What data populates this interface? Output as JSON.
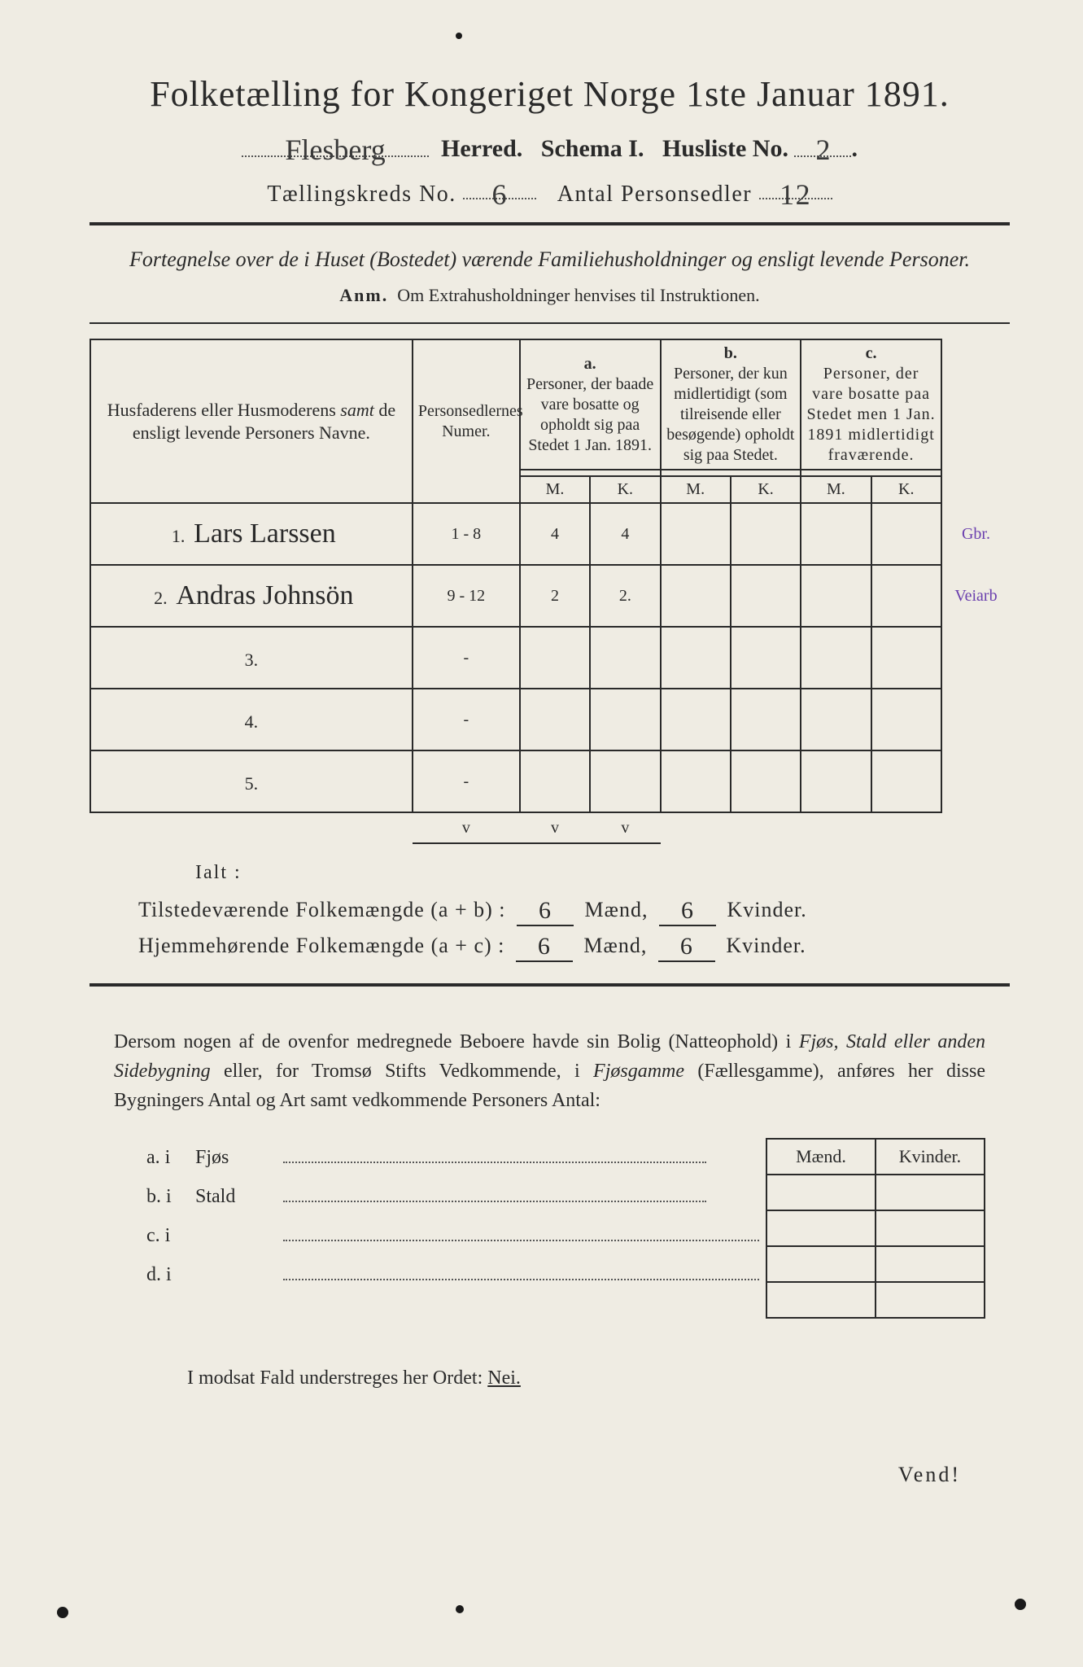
{
  "title": "Folketælling for Kongeriget Norge 1ste Januar 1891.",
  "header": {
    "herred_value": "Flesberg",
    "herred_label": "Herred.",
    "schema_label": "Schema I.",
    "husliste_label": "Husliste No.",
    "husliste_value": "2",
    "kreds_label": "Tællingskreds No.",
    "kreds_value": "6",
    "antal_label": "Antal Personsedler",
    "antal_value": "12"
  },
  "subtitle": "Fortegnelse over de i Huset (Bostedet) værende Familiehusholdninger og ensligt levende Personer.",
  "anm_label": "Anm.",
  "anm_text": "Om Extrahusholdninger henvises til Instruktionen.",
  "table": {
    "head": {
      "names": "Husfaderens eller Husmoderens samt de ensligt levende Personers Navne.",
      "numbers": "Personsedlernes Numer.",
      "a_label": "a.",
      "a_text": "Personer, der baade vare bosatte og opholdt sig paa Stedet 1 Jan. 1891.",
      "b_label": "b.",
      "b_text": "Personer, der kun midlertidigt (som tilreisende eller besøgende) opholdt sig paa Stedet.",
      "c_label": "c.",
      "c_text": "Personer, der vare bosatte paa Stedet men 1 Jan. 1891 midlertidigt fraværende.",
      "m": "M.",
      "k": "K."
    },
    "rows": [
      {
        "n": "1.",
        "name": "Lars Larssen",
        "num": "1 - 8",
        "a_m": "4",
        "a_k": "4",
        "b_m": "",
        "b_k": "",
        "c_m": "",
        "c_k": "",
        "margin": "Gbr."
      },
      {
        "n": "2.",
        "name": "Andras Johnsön",
        "num": "9 - 12",
        "a_m": "2",
        "a_k": "2.",
        "b_m": "",
        "b_k": "",
        "c_m": "",
        "c_k": "",
        "margin": "Veiarb"
      },
      {
        "n": "3.",
        "name": "",
        "num": "-",
        "a_m": "",
        "a_k": "",
        "b_m": "",
        "b_k": "",
        "c_m": "",
        "c_k": "",
        "margin": ""
      },
      {
        "n": "4.",
        "name": "",
        "num": "-",
        "a_m": "",
        "a_k": "",
        "b_m": "",
        "b_k": "",
        "c_m": "",
        "c_k": "",
        "margin": ""
      },
      {
        "n": "5.",
        "name": "",
        "num": "-",
        "a_m": "",
        "a_k": "",
        "b_m": "",
        "b_k": "",
        "c_m": "",
        "c_k": "",
        "margin": ""
      }
    ],
    "checks": {
      "c1": "v",
      "c2": "v",
      "c3": "v"
    }
  },
  "ialt": "Ialt :",
  "totals": {
    "line1_label": "Tilstedeværende Folkemængde (a + b) :",
    "line2_label": "Hjemmehørende Folkemængde (a + c) :",
    "maend": "Mænd,",
    "kvinder": "Kvinder.",
    "l1_m": "6",
    "l1_k": "6",
    "l2_m": "6",
    "l2_k": "6"
  },
  "para": {
    "p1": "Dersom nogen af de ovenfor medregnede Beboere havde sin Bolig (Natteophold) i ",
    "p1_it": "Fjøs, Stald eller anden Sidebygning",
    "p1b": " eller, for Tromsø Stifts Vedkommende, i ",
    "p1_it2": "Fjøsgamme",
    "p1c": " (Fællesgamme), anføres her disse Bygningers Antal og Art samt vedkommende Personers Antal:"
  },
  "mk": {
    "m": "Mænd.",
    "k": "Kvinder."
  },
  "list": {
    "a": "a.  i",
    "a2": "Fjøs",
    "b": "b.  i",
    "b2": "Stald",
    "c": "c.  i",
    "d": "d.  i"
  },
  "nei": {
    "text": "I modsat Fald understreges her Ordet: ",
    "word": "Nei."
  },
  "vend": "Vend!",
  "colors": {
    "paper": "#efece3",
    "ink": "#2a2a2a",
    "margin_ink": "#6a3fae"
  }
}
